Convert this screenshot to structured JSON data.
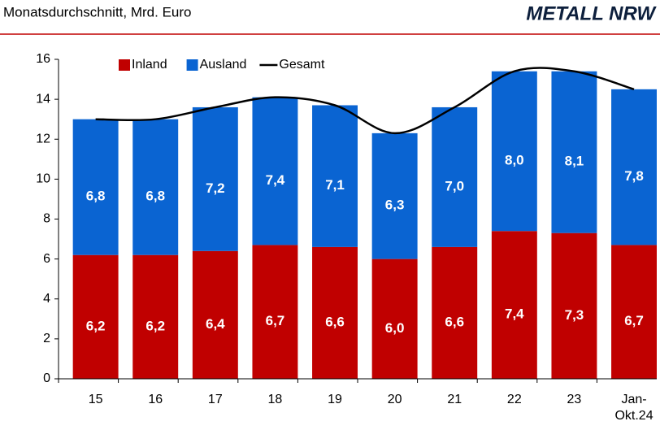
{
  "chart_data": {
    "type": "bar",
    "subtitle": "Monatsdurchschnitt, Mrd. Euro",
    "logo": "METALL NRW",
    "categories": [
      "15",
      "16",
      "17",
      "18",
      "19",
      "20",
      "21",
      "22",
      "23",
      "Jan-\nOkt.24"
    ],
    "series": [
      {
        "name": "Inland",
        "color": "#c00000",
        "values": [
          6.2,
          6.2,
          6.4,
          6.7,
          6.6,
          6.0,
          6.6,
          7.4,
          7.3,
          6.7
        ],
        "value_labels": [
          "6,2",
          "6,2",
          "6,4",
          "6,7",
          "6,6",
          "6,0",
          "6,6",
          "7,4",
          "7,3",
          "6,7"
        ]
      },
      {
        "name": "Ausland",
        "color": "#0a64d2",
        "values": [
          6.8,
          6.8,
          7.2,
          7.4,
          7.1,
          6.3,
          7.0,
          8.0,
          8.1,
          7.8
        ],
        "value_labels": [
          "6,8",
          "6,8",
          "7,2",
          "7,4",
          "7,1",
          "6,3",
          "7,0",
          "8,0",
          "8,1",
          "7,8"
        ]
      },
      {
        "name": "Gesamt",
        "type": "line",
        "color": "#000000",
        "values": [
          13.0,
          13.0,
          13.6,
          14.1,
          13.7,
          12.3,
          13.6,
          15.4,
          15.4,
          14.5
        ]
      }
    ],
    "ylim": [
      0,
      16
    ],
    "yticks": [
      0,
      2,
      4,
      6,
      8,
      10,
      12,
      14,
      16
    ],
    "stacked": true
  }
}
